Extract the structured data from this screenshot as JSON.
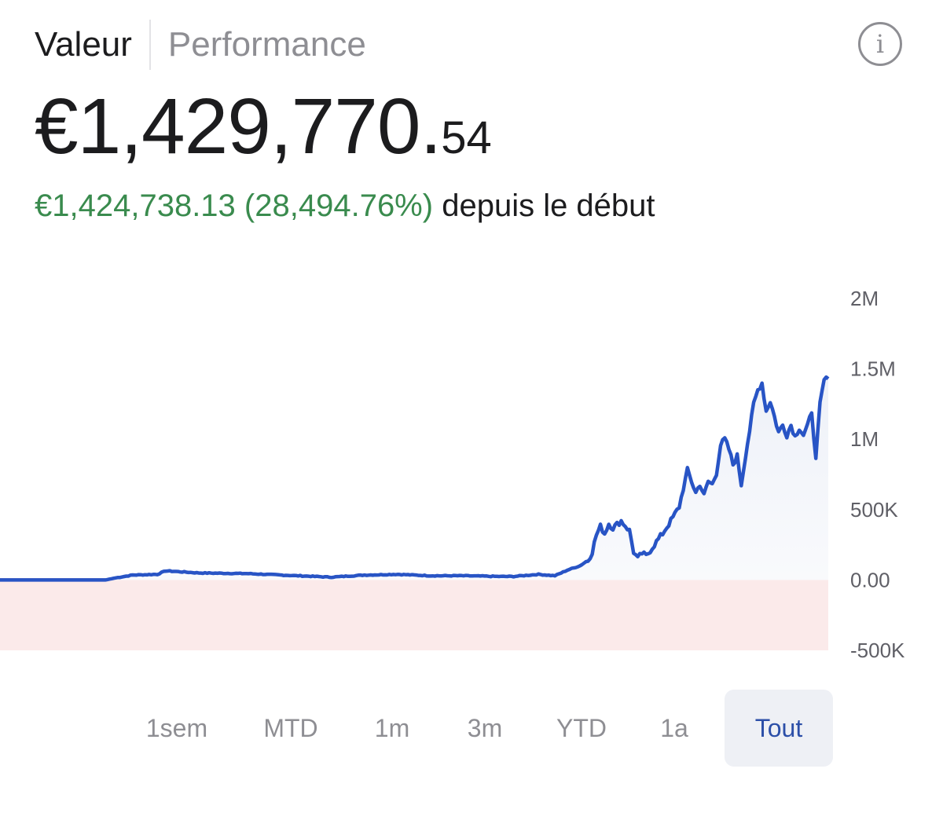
{
  "tabs": [
    {
      "label": "Valeur",
      "active": true
    },
    {
      "label": "Performance",
      "active": false
    }
  ],
  "info_icon": {
    "icon": "info-icon",
    "glyph": "i"
  },
  "portfolio": {
    "value_main": "€1,429,770.",
    "value_cents": "54",
    "gain": "€1,424,738.13 (28,494.76%)",
    "since_label": "depuis le début"
  },
  "chart_data": {
    "type": "line",
    "title": "",
    "xlabel": "",
    "ylabel": "",
    "ylim": [
      -500000,
      2000000
    ],
    "y_ticks": [
      {
        "value": 2000000,
        "label": "2M"
      },
      {
        "value": 1500000,
        "label": "1.5M"
      },
      {
        "value": 1000000,
        "label": "1M"
      },
      {
        "value": 500000,
        "label": "500K"
      },
      {
        "value": 0,
        "label": "0.00"
      },
      {
        "value": -500000,
        "label": "-500K"
      }
    ],
    "grid": false,
    "colors": {
      "line": "#2854c5",
      "negative_line": "#c8333f",
      "positive_fill": "#eef1f8",
      "negative_fill": "#fbeaea"
    },
    "series": [
      {
        "x": [
          0,
          0.127,
          0.14,
          0.16,
          0.19,
          0.2,
          0.24,
          0.3,
          0.36,
          0.4,
          0.44,
          0.48,
          0.52,
          0.56,
          0.6,
          0.62,
          0.65,
          0.67,
          0.685,
          0.7,
          0.71,
          0.715,
          0.72,
          0.725,
          0.73,
          0.735,
          0.74,
          0.75,
          0.76,
          0.765,
          0.77,
          0.775,
          0.78,
          0.785,
          0.79,
          0.8,
          0.81,
          0.82,
          0.83,
          0.84,
          0.845,
          0.85,
          0.855,
          0.86,
          0.865,
          0.87,
          0.875,
          0.88,
          0.885,
          0.89,
          0.895,
          0.9,
          0.905,
          0.91,
          0.915,
          0.92,
          0.925,
          0.93,
          0.935,
          0.94,
          0.945,
          0.95,
          0.955,
          0.96,
          0.965,
          0.97,
          0.975,
          0.98,
          0.985,
          0.99,
          0.995,
          1.0
        ],
        "y": [
          0,
          0,
          15000,
          35000,
          40000,
          65000,
          50000,
          45000,
          30000,
          20000,
          35000,
          40000,
          30000,
          30000,
          25000,
          25000,
          40000,
          30000,
          70000,
          100000,
          140000,
          200000,
          320000,
          380000,
          330000,
          400000,
          370000,
          420000,
          350000,
          200000,
          150000,
          190000,
          170000,
          210000,
          250000,
          330000,
          420000,
          520000,
          780000,
          620000,
          680000,
          600000,
          700000,
          680000,
          760000,
          960000,
          1000000,
          930000,
          820000,
          880000,
          680000,
          880000,
          1060000,
          1250000,
          1350000,
          1400000,
          1200000,
          1270000,
          1160000,
          1050000,
          1100000,
          1030000,
          1100000,
          1020000,
          1080000,
          1030000,
          1090000,
          1200000,
          850000,
          1250000,
          1420000,
          1429770
        ]
      }
    ],
    "negative_segment_end": 0.127
  },
  "ranges": [
    {
      "label": "1sem",
      "selected": false
    },
    {
      "label": "MTD",
      "selected": false
    },
    {
      "label": "1m",
      "selected": false
    },
    {
      "label": "3m",
      "selected": false
    },
    {
      "label": "YTD",
      "selected": false
    },
    {
      "label": "1a",
      "selected": false
    },
    {
      "label": "Tout",
      "selected": true
    }
  ]
}
